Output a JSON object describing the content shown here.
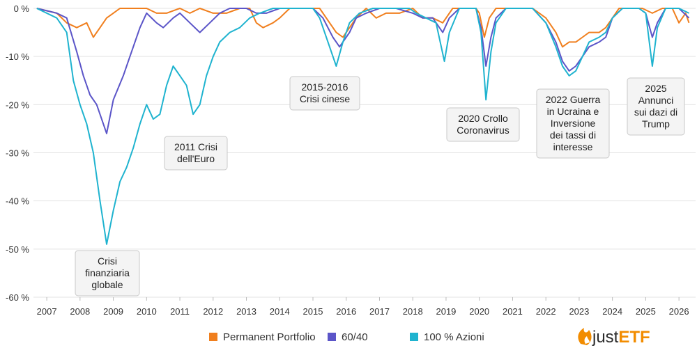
{
  "chart_data": {
    "type": "line",
    "xlabel": "",
    "ylabel": "",
    "ylim": [
      -60,
      0
    ],
    "xlim": [
      2006.6,
      2026.5
    ],
    "y_ticks": [
      {
        "value": 0,
        "label": "0 %"
      },
      {
        "value": -10,
        "label": "-10 %"
      },
      {
        "value": -20,
        "label": "-20 %"
      },
      {
        "value": -30,
        "label": "-30 %"
      },
      {
        "value": -40,
        "label": "-40 %"
      },
      {
        "value": -50,
        "label": "-50 %"
      },
      {
        "value": -60,
        "label": "-60 %"
      }
    ],
    "x_ticks": [
      {
        "value": 2007,
        "label": "2007"
      },
      {
        "value": 2008,
        "label": "2008"
      },
      {
        "value": 2009,
        "label": "2009"
      },
      {
        "value": 2010,
        "label": "2010"
      },
      {
        "value": 2011,
        "label": "2011"
      },
      {
        "value": 2012,
        "label": "2012"
      },
      {
        "value": 2013,
        "label": "2013"
      },
      {
        "value": 2014,
        "label": "2014"
      },
      {
        "value": 2015,
        "label": "2015"
      },
      {
        "value": 2016,
        "label": "2016"
      },
      {
        "value": 2017,
        "label": "2017"
      },
      {
        "value": 2018,
        "label": "2018"
      },
      {
        "value": 2019,
        "label": "2019"
      },
      {
        "value": 2020,
        "label": "2020"
      },
      {
        "value": 2021,
        "label": "2021"
      },
      {
        "value": 2022,
        "label": "2022"
      },
      {
        "value": 2023,
        "label": "2023"
      },
      {
        "value": 2024,
        "label": "2024"
      },
      {
        "value": 2025,
        "label": "2025"
      },
      {
        "value": 2026,
        "label": "2026"
      }
    ],
    "series": [
      {
        "name": "Permanent Portfolio",
        "color": "#f07f1e",
        "points": [
          [
            2006.7,
            0
          ],
          [
            2007.3,
            -1
          ],
          [
            2007.6,
            -3
          ],
          [
            2007.9,
            -4
          ],
          [
            2008.2,
            -3
          ],
          [
            2008.4,
            -6
          ],
          [
            2008.6,
            -4
          ],
          [
            2008.8,
            -2
          ],
          [
            2009.0,
            -1
          ],
          [
            2009.2,
            0
          ],
          [
            2009.5,
            0
          ],
          [
            2010.0,
            0
          ],
          [
            2010.3,
            -1
          ],
          [
            2010.6,
            -1
          ],
          [
            2011.0,
            0
          ],
          [
            2011.3,
            -1
          ],
          [
            2011.6,
            0
          ],
          [
            2012.0,
            -1
          ],
          [
            2012.4,
            -1
          ],
          [
            2012.8,
            0
          ],
          [
            2013.1,
            0
          ],
          [
            2013.3,
            -3
          ],
          [
            2013.5,
            -4
          ],
          [
            2013.8,
            -3
          ],
          [
            2014.0,
            -2
          ],
          [
            2014.3,
            0
          ],
          [
            2014.8,
            0
          ],
          [
            2015.2,
            0
          ],
          [
            2015.5,
            -3
          ],
          [
            2015.7,
            -5
          ],
          [
            2015.9,
            -6
          ],
          [
            2016.1,
            -4
          ],
          [
            2016.3,
            -2
          ],
          [
            2016.6,
            0
          ],
          [
            2016.9,
            -2
          ],
          [
            2017.2,
            -1
          ],
          [
            2017.6,
            -1
          ],
          [
            2018.0,
            0
          ],
          [
            2018.3,
            -2
          ],
          [
            2018.6,
            -2
          ],
          [
            2018.9,
            -3
          ],
          [
            2019.2,
            0
          ],
          [
            2019.5,
            0
          ],
          [
            2019.9,
            0
          ],
          [
            2020.0,
            -1
          ],
          [
            2020.15,
            -6
          ],
          [
            2020.3,
            -2
          ],
          [
            2020.5,
            0
          ],
          [
            2020.9,
            0
          ],
          [
            2021.2,
            0
          ],
          [
            2021.6,
            0
          ],
          [
            2022.0,
            -2
          ],
          [
            2022.3,
            -5
          ],
          [
            2022.5,
            -8
          ],
          [
            2022.7,
            -7
          ],
          [
            2022.9,
            -7
          ],
          [
            2023.1,
            -6
          ],
          [
            2023.3,
            -5
          ],
          [
            2023.6,
            -5
          ],
          [
            2023.8,
            -4
          ],
          [
            2024.0,
            -2
          ],
          [
            2024.2,
            0
          ],
          [
            2024.6,
            0
          ],
          [
            2024.9,
            0
          ],
          [
            2025.2,
            -1
          ],
          [
            2025.5,
            0
          ],
          [
            2025.8,
            0
          ],
          [
            2026.0,
            -3
          ],
          [
            2026.2,
            -1
          ],
          [
            2026.3,
            -3
          ]
        ]
      },
      {
        "name": "60/40",
        "color": "#5b55c8",
        "points": [
          [
            2006.7,
            0
          ],
          [
            2007.3,
            -1
          ],
          [
            2007.6,
            -2
          ],
          [
            2007.9,
            -9
          ],
          [
            2008.1,
            -14
          ],
          [
            2008.3,
            -18
          ],
          [
            2008.5,
            -20
          ],
          [
            2008.8,
            -26
          ],
          [
            2009.0,
            -19
          ],
          [
            2009.3,
            -14
          ],
          [
            2009.5,
            -10
          ],
          [
            2009.8,
            -4
          ],
          [
            2010.0,
            -1
          ],
          [
            2010.3,
            -3
          ],
          [
            2010.5,
            -4
          ],
          [
            2010.8,
            -2
          ],
          [
            2011.0,
            -1
          ],
          [
            2011.3,
            -3
          ],
          [
            2011.6,
            -5
          ],
          [
            2011.9,
            -3
          ],
          [
            2012.2,
            -1
          ],
          [
            2012.5,
            0
          ],
          [
            2013.0,
            0
          ],
          [
            2013.3,
            -1
          ],
          [
            2013.6,
            -1
          ],
          [
            2014.0,
            0
          ],
          [
            2014.5,
            0
          ],
          [
            2015.0,
            0
          ],
          [
            2015.3,
            -2
          ],
          [
            2015.6,
            -6
          ],
          [
            2015.8,
            -8
          ],
          [
            2016.1,
            -5
          ],
          [
            2016.3,
            -2
          ],
          [
            2016.6,
            -1
          ],
          [
            2017.0,
            0
          ],
          [
            2017.5,
            0
          ],
          [
            2018.0,
            -1
          ],
          [
            2018.3,
            -2
          ],
          [
            2018.6,
            -2
          ],
          [
            2018.9,
            -5
          ],
          [
            2019.1,
            -2
          ],
          [
            2019.4,
            0
          ],
          [
            2019.9,
            0
          ],
          [
            2020.05,
            -4
          ],
          [
            2020.2,
            -12
          ],
          [
            2020.35,
            -6
          ],
          [
            2020.5,
            -2
          ],
          [
            2020.8,
            0
          ],
          [
            2021.2,
            0
          ],
          [
            2021.6,
            0
          ],
          [
            2022.0,
            -3
          ],
          [
            2022.3,
            -7
          ],
          [
            2022.5,
            -11
          ],
          [
            2022.7,
            -13
          ],
          [
            2022.9,
            -12
          ],
          [
            2023.1,
            -10
          ],
          [
            2023.3,
            -8
          ],
          [
            2023.6,
            -7
          ],
          [
            2023.8,
            -6
          ],
          [
            2024.0,
            -2
          ],
          [
            2024.3,
            0
          ],
          [
            2024.8,
            0
          ],
          [
            2025.0,
            -1
          ],
          [
            2025.2,
            -6
          ],
          [
            2025.35,
            -3
          ],
          [
            2025.6,
            0
          ],
          [
            2026.0,
            0
          ],
          [
            2026.3,
            -2
          ]
        ]
      },
      {
        "name": "100 % Azioni",
        "color": "#1fb3cf",
        "points": [
          [
            2006.7,
            0
          ],
          [
            2007.3,
            -2
          ],
          [
            2007.6,
            -5
          ],
          [
            2007.8,
            -15
          ],
          [
            2008.0,
            -20
          ],
          [
            2008.2,
            -24
          ],
          [
            2008.4,
            -30
          ],
          [
            2008.6,
            -40
          ],
          [
            2008.8,
            -49
          ],
          [
            2009.0,
            -42
          ],
          [
            2009.2,
            -36
          ],
          [
            2009.4,
            -33
          ],
          [
            2009.6,
            -29
          ],
          [
            2009.8,
            -24
          ],
          [
            2010.0,
            -20
          ],
          [
            2010.2,
            -23
          ],
          [
            2010.4,
            -22
          ],
          [
            2010.6,
            -16
          ],
          [
            2010.8,
            -12
          ],
          [
            2011.0,
            -14
          ],
          [
            2011.2,
            -16
          ],
          [
            2011.4,
            -22
          ],
          [
            2011.6,
            -20
          ],
          [
            2011.8,
            -14
          ],
          [
            2012.0,
            -10
          ],
          [
            2012.2,
            -7
          ],
          [
            2012.5,
            -5
          ],
          [
            2012.8,
            -4
          ],
          [
            2013.1,
            -2
          ],
          [
            2013.4,
            -1
          ],
          [
            2013.8,
            0
          ],
          [
            2014.2,
            0
          ],
          [
            2014.6,
            0
          ],
          [
            2015.0,
            0
          ],
          [
            2015.2,
            -2
          ],
          [
            2015.5,
            -8
          ],
          [
            2015.7,
            -12
          ],
          [
            2015.9,
            -7
          ],
          [
            2016.1,
            -3
          ],
          [
            2016.4,
            -1
          ],
          [
            2016.8,
            0
          ],
          [
            2017.4,
            0
          ],
          [
            2017.9,
            0
          ],
          [
            2018.1,
            -1
          ],
          [
            2018.4,
            -2
          ],
          [
            2018.7,
            -3
          ],
          [
            2018.95,
            -11
          ],
          [
            2019.1,
            -5
          ],
          [
            2019.4,
            0
          ],
          [
            2019.9,
            0
          ],
          [
            2020.05,
            -5
          ],
          [
            2020.2,
            -19
          ],
          [
            2020.35,
            -9
          ],
          [
            2020.5,
            -3
          ],
          [
            2020.8,
            0
          ],
          [
            2021.2,
            0
          ],
          [
            2021.6,
            0
          ],
          [
            2022.0,
            -3
          ],
          [
            2022.3,
            -8
          ],
          [
            2022.5,
            -12
          ],
          [
            2022.7,
            -14
          ],
          [
            2022.9,
            -13
          ],
          [
            2023.1,
            -10
          ],
          [
            2023.3,
            -7
          ],
          [
            2023.6,
            -6
          ],
          [
            2023.8,
            -5
          ],
          [
            2024.0,
            -2
          ],
          [
            2024.3,
            0
          ],
          [
            2024.8,
            0
          ],
          [
            2025.0,
            -1
          ],
          [
            2025.2,
            -12
          ],
          [
            2025.35,
            -4
          ],
          [
            2025.6,
            0
          ],
          [
            2026.0,
            0
          ],
          [
            2026.3,
            -1
          ]
        ]
      }
    ],
    "annotations": [
      {
        "lines": [
          "Crisi",
          "finanziaria",
          "globale"
        ]
      },
      {
        "lines": [
          "2011 Crisi",
          "dell'Euro"
        ]
      },
      {
        "lines": [
          "2015-2016",
          "Crisi cinese"
        ]
      },
      {
        "lines": [
          "2020 Crollo",
          "Coronavirus"
        ]
      },
      {
        "lines": [
          "2022 Guerra",
          "in Ucraina e",
          "Inversione",
          "dei tassi di",
          "interesse"
        ]
      },
      {
        "lines": [
          "2025",
          "Annunci",
          "sui dazi di",
          "Trump"
        ]
      }
    ],
    "legend_position": "bottom",
    "grid": true
  },
  "logo": {
    "text_a": "just",
    "text_b": "ETF"
  }
}
